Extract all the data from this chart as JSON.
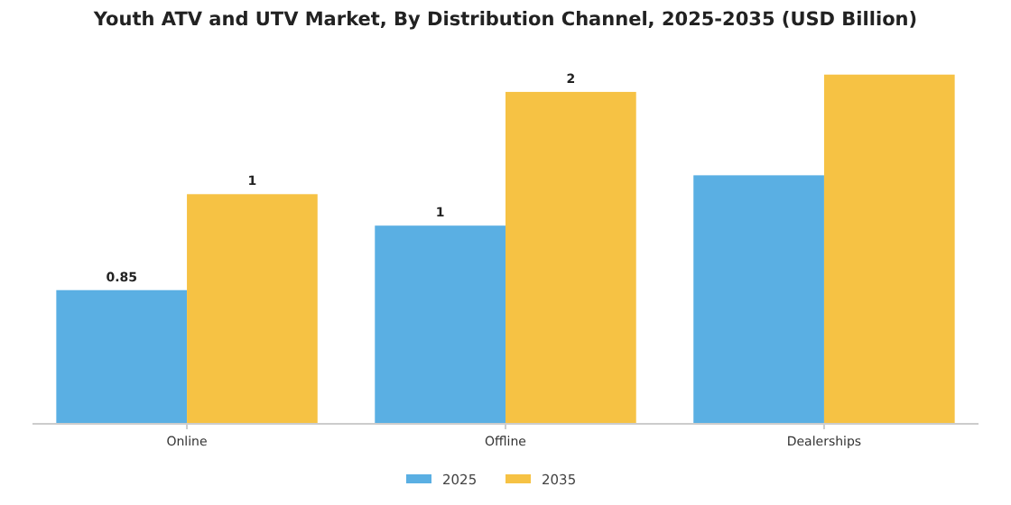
{
  "chart_data": {
    "type": "bar",
    "title": "Youth ATV and UTV Market, By Distribution Channel, 2025-2035 (USD Billion)",
    "categories": [
      "Online",
      "Offline",
      "Dealerships"
    ],
    "series": [
      {
        "name": "2025",
        "color": "#5aafe3",
        "values": [
          0.85,
          1.26,
          1.58
        ],
        "value_labels": [
          "0.85",
          "1",
          null
        ]
      },
      {
        "name": "2035",
        "color": "#f6c244",
        "values": [
          1.46,
          2.11,
          2.22
        ],
        "value_labels": [
          "1",
          "2",
          null
        ]
      }
    ],
    "legend": "bottom"
  }
}
